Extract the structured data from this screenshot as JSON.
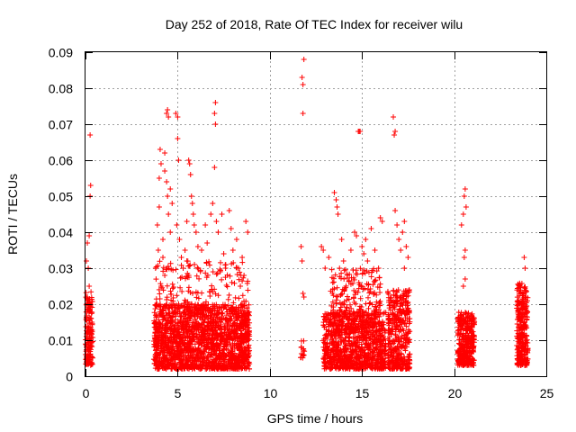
{
  "chart_data": {
    "type": "scatter",
    "title": "Day 252 of 2018, Rate Of TEC Index for receiver wilu",
    "xlabel": "GPS time / hours",
    "ylabel": "ROTI / TECUs",
    "xlim": [
      0,
      25
    ],
    "ylim": [
      0,
      0.09
    ],
    "x_ticks": [
      "0",
      "5",
      "10",
      "15",
      "20",
      "25"
    ],
    "y_ticks": [
      "0",
      "0.01",
      "0.02",
      "0.03",
      "0.04",
      "0.05",
      "0.06",
      "0.07",
      "0.08",
      "0.09"
    ],
    "x_tick_values": [
      0,
      5,
      10,
      15,
      20,
      25
    ],
    "y_tick_values": [
      0,
      0.01,
      0.02,
      0.03,
      0.04,
      0.05,
      0.06,
      0.07,
      0.08,
      0.09
    ],
    "grid": true,
    "marker": "plus",
    "series": [
      {
        "color": "#ff0000",
        "points": [
          [
            0.05,
            0.005
          ],
          [
            0.1,
            0.012
          ],
          [
            0.15,
            0.008
          ],
          [
            0.2,
            0.018
          ],
          [
            0.25,
            0.006
          ],
          [
            0.1,
            0.022
          ],
          [
            0.2,
            0.025
          ],
          [
            0.15,
            0.03
          ],
          [
            0.05,
            0.032
          ],
          [
            0.1,
            0.037
          ],
          [
            0.2,
            0.039
          ],
          [
            0.25,
            0.05
          ],
          [
            0.28,
            0.053
          ],
          [
            0.25,
            0.067
          ],
          [
            0.3,
            0.01
          ],
          [
            0.35,
            0.015
          ],
          [
            3.8,
            0.03
          ],
          [
            3.9,
            0.042
          ],
          [
            4.0,
            0.047
          ],
          [
            4.0,
            0.055
          ],
          [
            4.05,
            0.063
          ],
          [
            4.1,
            0.059
          ],
          [
            4.2,
            0.038
          ],
          [
            4.3,
            0.062
          ],
          [
            4.3,
            0.057
          ],
          [
            4.4,
            0.054
          ],
          [
            4.45,
            0.05
          ],
          [
            4.4,
            0.073
          ],
          [
            4.45,
            0.074
          ],
          [
            4.5,
            0.072
          ],
          [
            4.5,
            0.045
          ],
          [
            4.6,
            0.04
          ],
          [
            4.6,
            0.052
          ],
          [
            4.7,
            0.048
          ],
          [
            4.2,
            0.033
          ],
          [
            4.3,
            0.028
          ],
          [
            4.1,
            0.025
          ],
          [
            3.95,
            0.035
          ],
          [
            4.9,
            0.073
          ],
          [
            5.0,
            0.072
          ],
          [
            5.0,
            0.066
          ],
          [
            5.05,
            0.06
          ],
          [
            4.95,
            0.042
          ],
          [
            5.1,
            0.038
          ],
          [
            5.2,
            0.033
          ],
          [
            5.3,
            0.03
          ],
          [
            5.4,
            0.035
          ],
          [
            5.5,
            0.043
          ],
          [
            5.6,
            0.06
          ],
          [
            5.65,
            0.059
          ],
          [
            5.7,
            0.056
          ],
          [
            5.75,
            0.05
          ],
          [
            5.8,
            0.048
          ],
          [
            5.85,
            0.045
          ],
          [
            5.9,
            0.042
          ],
          [
            5.5,
            0.032
          ],
          [
            5.6,
            0.028
          ],
          [
            6.0,
            0.04
          ],
          [
            6.1,
            0.036
          ],
          [
            6.3,
            0.035
          ],
          [
            6.5,
            0.042
          ],
          [
            6.6,
            0.037
          ],
          [
            6.8,
            0.045
          ],
          [
            6.9,
            0.048
          ],
          [
            7.0,
            0.058
          ],
          [
            7.05,
            0.07
          ],
          [
            7.0,
            0.073
          ],
          [
            7.05,
            0.076
          ],
          [
            7.1,
            0.043
          ],
          [
            7.2,
            0.04
          ],
          [
            7.4,
            0.045
          ],
          [
            7.5,
            0.034
          ],
          [
            7.6,
            0.03
          ],
          [
            7.8,
            0.046
          ],
          [
            7.9,
            0.041
          ],
          [
            8.0,
            0.035
          ],
          [
            8.2,
            0.038
          ],
          [
            8.3,
            0.03
          ],
          [
            8.5,
            0.033
          ],
          [
            8.7,
            0.043
          ],
          [
            8.8,
            0.04
          ],
          [
            8.6,
            0.028
          ],
          [
            8.4,
            0.025
          ],
          [
            11.75,
            0.083
          ],
          [
            11.8,
            0.081
          ],
          [
            11.85,
            0.088
          ],
          [
            11.8,
            0.073
          ],
          [
            11.7,
            0.036
          ],
          [
            11.75,
            0.032
          ],
          [
            11.8,
            0.023
          ],
          [
            11.85,
            0.022
          ],
          [
            11.7,
            0.008
          ],
          [
            11.8,
            0.006
          ],
          [
            12.8,
            0.036
          ],
          [
            12.9,
            0.035
          ],
          [
            13.0,
            0.03
          ],
          [
            13.2,
            0.033
          ],
          [
            13.5,
            0.051
          ],
          [
            13.6,
            0.049
          ],
          [
            13.65,
            0.047
          ],
          [
            13.7,
            0.045
          ],
          [
            13.9,
            0.038
          ],
          [
            14.0,
            0.032
          ],
          [
            14.2,
            0.028
          ],
          [
            14.4,
            0.035
          ],
          [
            14.6,
            0.04
          ],
          [
            14.7,
            0.039
          ],
          [
            14.8,
            0.068
          ],
          [
            14.9,
            0.068
          ],
          [
            14.85,
            0.068
          ],
          [
            15.0,
            0.036
          ],
          [
            15.1,
            0.034
          ],
          [
            15.2,
            0.038
          ],
          [
            15.3,
            0.032
          ],
          [
            15.5,
            0.041
          ],
          [
            15.7,
            0.035
          ],
          [
            15.9,
            0.03
          ],
          [
            16.0,
            0.044
          ],
          [
            16.1,
            0.043
          ],
          [
            16.7,
            0.072
          ],
          [
            16.8,
            0.068
          ],
          [
            16.75,
            0.067
          ],
          [
            16.8,
            0.046
          ],
          [
            16.9,
            0.042
          ],
          [
            17.0,
            0.038
          ],
          [
            17.1,
            0.035
          ],
          [
            17.2,
            0.04
          ],
          [
            17.3,
            0.043
          ],
          [
            17.4,
            0.036
          ],
          [
            17.5,
            0.033
          ],
          [
            17.3,
            0.03
          ],
          [
            20.4,
            0.042
          ],
          [
            20.5,
            0.045
          ],
          [
            20.55,
            0.05
          ],
          [
            20.6,
            0.052
          ],
          [
            20.65,
            0.047
          ],
          [
            20.6,
            0.035
          ],
          [
            20.55,
            0.033
          ],
          [
            20.6,
            0.027
          ],
          [
            20.5,
            0.025
          ],
          [
            23.8,
            0.033
          ],
          [
            23.85,
            0.03
          ],
          [
            23.9,
            0.022
          ],
          [
            23.75,
            0.02
          ]
        ]
      }
    ],
    "dense_bands": [
      {
        "x": [
          0.0,
          0.4
        ],
        "y": [
          0.003,
          0.024
        ],
        "n": 150
      },
      {
        "x": [
          3.7,
          8.9
        ],
        "y": [
          0.002,
          0.02
        ],
        "n": 1700
      },
      {
        "x": [
          3.8,
          8.9
        ],
        "y": [
          0.01,
          0.032
        ],
        "n": 300
      },
      {
        "x": [
          11.65,
          11.9
        ],
        "y": [
          0.005,
          0.01
        ],
        "n": 12
      },
      {
        "x": [
          12.9,
          16.3
        ],
        "y": [
          0.002,
          0.018
        ],
        "n": 950
      },
      {
        "x": [
          13.3,
          16.0
        ],
        "y": [
          0.012,
          0.03
        ],
        "n": 250
      },
      {
        "x": [
          16.4,
          17.6
        ],
        "y": [
          0.002,
          0.024
        ],
        "n": 400
      },
      {
        "x": [
          20.2,
          21.1
        ],
        "y": [
          0.003,
          0.018
        ],
        "n": 350
      },
      {
        "x": [
          23.4,
          24.0
        ],
        "y": [
          0.003,
          0.026
        ],
        "n": 300
      }
    ]
  }
}
